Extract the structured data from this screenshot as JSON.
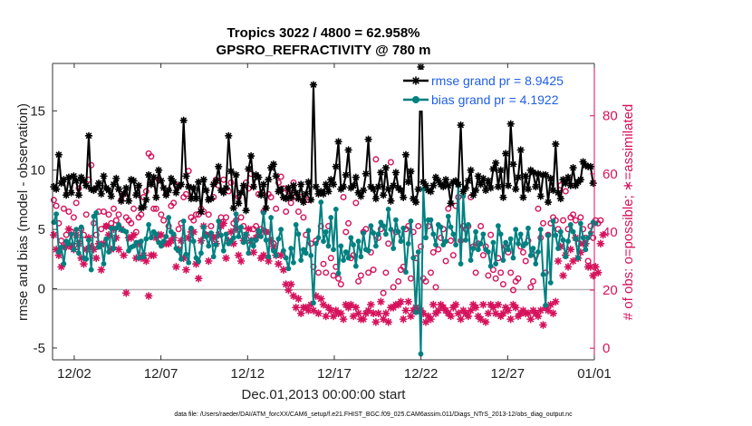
{
  "chart_data": {
    "type": "line",
    "title": "Tropics 3022 / 4800 = 62.958%",
    "subtitle": "GPSRO_REFRACTIVITY @ 780 m",
    "xlabel": "Dec.01,2013 00:00:00 start",
    "ylabel": "rmse and bias (model - observation)",
    "ylabel_right": "# of obs: o=possible; ∗=assimilated",
    "footnote": "data file: /Users/raeder/DAI/ATM_forcXX/CAM6_setup/f.e21.FHIST_BGC.f09_025.CAM6assim.011/Diags_NTrS_2013-12/obs_diag_output.nc",
    "xlim": [
      0.5,
      31.75
    ],
    "ylim": [
      -6,
      19
    ],
    "ylim_right": [
      -4,
      98
    ],
    "x_ticks": [
      1.75,
      6.75,
      11.75,
      16.75,
      21.75,
      26.75,
      31.75
    ],
    "x_tick_labels": [
      "12/02",
      "12/07",
      "12/12",
      "12/17",
      "12/22",
      "12/27",
      "01/01"
    ],
    "y_ticks": [
      -5,
      0,
      5,
      10,
      15
    ],
    "y_tick_labels": [
      "-5",
      "0",
      "5",
      "10",
      "15"
    ],
    "y_right_ticks": [
      0,
      20,
      40,
      60,
      80
    ],
    "y_right_tick_labels": [
      "0",
      "20",
      "40",
      "60",
      "80"
    ],
    "legend_position": "top-right",
    "colors": {
      "rmse": "#000000",
      "bias": "#008080",
      "obs": "#d6125c",
      "zero_line": "#b4b4b4"
    },
    "series": [
      {
        "name": "rmse grand pr = 8.9425",
        "values": [
          8.6,
          8.4,
          11.3,
          8.9,
          9.2,
          7.9,
          9.4,
          8.1,
          9.5,
          9.1,
          7.9,
          9.4,
          9.1,
          8.7,
          12.9,
          8.4,
          8.3,
          8.5,
          8.9,
          8.0,
          9.5,
          8.5,
          8.3,
          7.8,
          8.8,
          9.3,
          8.4,
          7.4,
          8.0,
          8.5,
          7.4,
          9.2,
          9.1,
          7.9,
          8.7,
          6.8,
          6.9,
          7.5,
          9.6,
          8.8,
          9.4,
          7.7,
          10.0,
          9.1,
          8.5,
          7.9,
          8.3,
          9.3,
          9.0,
          8.1,
          8.6,
          8.8,
          14.2,
          9.5,
          8.6,
          7.6,
          8.5,
          7.6,
          9.0,
          6.5,
          9.2,
          8.3,
          7.5,
          7.6,
          8.8,
          9.1,
          10.3,
          8.3,
          8.1,
          8.5,
          12.9,
          9.9,
          6.8,
          9.6,
          7.2,
          8.1,
          8.7,
          6.6,
          10.1,
          11.2,
          8.6,
          9.6,
          9.4,
          7.9,
          8.8,
          6.8,
          9.2,
          10.2,
          10.5,
          9.5,
          8.2,
          8.4,
          7.7,
          7.6,
          8.5,
          7.7,
          8.7,
          8.1,
          7.6,
          8.8,
          7.3,
          8.0,
          9.0,
          7.5,
          17.2,
          8.6,
          8.0,
          8.2,
          8.0,
          8.8,
          8.2,
          9.2,
          8.8,
          10.3,
          12.4,
          8.4,
          8.6,
          9.6,
          11.7,
          8.5,
          8.7,
          9.4,
          8.1,
          7.8,
          8.3,
          9.7,
          12.6,
          8.6,
          8.4,
          7.6,
          8.6,
          9.8,
          7.9,
          10.2,
          8.4,
          7.4,
          8.7,
          9.8,
          8.5,
          8.3,
          7.7,
          11.3,
          9.0,
          9.9,
          7.6,
          7.3,
          8.4,
          18.7,
          9.0,
          8.7,
          8.3,
          8.2,
          8.7,
          9.4,
          9.1,
          8.8,
          8.6,
          9.2,
          8.7,
          7.2,
          9.0,
          9.1,
          8.8,
          13.8,
          8.2,
          8.5,
          9.1,
          10.0,
          7.9,
          8.3,
          9.5,
          8.8,
          9.3,
          8.3,
          9.1,
          8.5,
          10.1,
          10.6,
          8.6,
          10.0,
          7.7,
          11.4,
          8.7,
          13.9,
          10.5,
          8.4,
          9.4,
          11.7,
          7.7,
          9.5,
          8.4,
          10.0,
          9.8,
          8.6,
          9.7,
          7.8,
          9.6,
          9.6,
          7.3,
          9.3,
          8.3,
          12.2,
          8.1,
          7.6,
          9.2,
          8.9,
          9.4,
          8.7,
          10.2,
          8.7,
          9.0,
          9.2,
          10.7,
          10.4,
          10.3,
          10.3,
          8.9
        ]
      },
      {
        "name": "bias grand pr = 4.1922",
        "values": [
          5.6,
          6.3,
          3.1,
          3.5,
          2.1,
          4.0,
          3.8,
          4.6,
          3.3,
          5.0,
          3.0,
          5.2,
          2.6,
          2.5,
          4.1,
          1.6,
          6.1,
          6.4,
          3.5,
          3.7,
          2.1,
          4.2,
          3.1,
          5.1,
          3.4,
          5.1,
          5.4,
          5.0,
          4.9,
          4.8,
          3.2,
          3.5,
          3.6,
          3.9,
          2.6,
          4.0,
          2.7,
          4.2,
          5.4,
          4.3,
          4.8,
          4.6,
          3.9,
          3.6,
          4.0,
          4.4,
          6.0,
          4.8,
          4.6,
          3.4,
          3.2,
          2.5,
          5.7,
          2.9,
          2.2,
          5.1,
          4.0,
          2.6,
          2.3,
          3.0,
          5.2,
          4.4,
          3.6,
          4.7,
          2.7,
          3.7,
          5.7,
          4.5,
          3.2,
          4.6,
          3.8,
          4.0,
          4.3,
          6.3,
          4.4,
          5.2,
          3.9,
          4.6,
          3.0,
          4.1,
          3.6,
          4.1,
          4.9,
          4.4,
          6.4,
          4.1,
          2.7,
          6.0,
          3.2,
          2.8,
          4.2,
          5.0,
          3.2,
          2.6,
          1.7,
          3.4,
          2.2,
          5.4,
          4.6,
          2.4,
          3.3,
          3.0,
          4.9,
          2.8,
          -1.2,
          3.8,
          4.3,
          7.3,
          4.0,
          4.8,
          3.6,
          6.0,
          3.3,
          6.7,
          1.3,
          3.6,
          2.4,
          3.1,
          2.6,
          4.3,
          3.7,
          1.9,
          4.0,
          2.7,
          4.7,
          3.3,
          3.2,
          5.3,
          4.7,
          3.6,
          4.6,
          5.6,
          5.3,
          4.6,
          6.7,
          5.0,
          3.4,
          5.8,
          4.8,
          4.0,
          5.1,
          1.4,
          3.8,
          5.7,
          2.6,
          -2.0,
          3.1,
          -5.5,
          8.4,
          4.3,
          5.8,
          5.8,
          4.6,
          3.7,
          5.4,
          5.2,
          3.7,
          4.0,
          6.1,
          5.2,
          4.6,
          3.7,
          8.7,
          2.1,
          7.8,
          4.1,
          5.4,
          2.4,
          3.4,
          4.8,
          3.3,
          3.8,
          4.6,
          3.3,
          3.1,
          1.9,
          3.9,
          2.1,
          5.3,
          4.6,
          2.4,
          3.9,
          3.3,
          4.2,
          2.6,
          5.0,
          3.8,
          4.6,
          3.6,
          3.8,
          5.1,
          2.8,
          3.4,
          2.1,
          3.1,
          5.0,
          1.2,
          -1.4,
          4.5,
          0.5,
          5.7,
          4.5,
          3.4,
          4.8,
          4.1,
          2.7,
          4.0,
          5.4,
          4.8,
          4.2,
          2.6,
          5.5,
          4.3,
          3.3,
          4.3,
          4.7,
          5.6,
          5.5
        ]
      }
    ],
    "obs_possible": [
      51,
      49,
      43,
      37,
      48,
      39,
      47,
      40,
      45,
      50,
      55,
      41,
      39,
      46,
      58,
      63,
      43,
      39,
      47,
      41,
      47,
      42,
      46,
      43,
      48,
      44,
      46,
      51,
      53,
      45,
      44,
      43,
      48,
      40,
      45,
      46,
      52,
      54,
      67,
      66,
      48,
      48,
      58,
      46,
      44,
      53,
      42,
      49,
      50,
      56,
      41,
      43,
      52,
      53,
      61,
      45,
      44,
      46,
      46,
      48,
      47,
      39,
      46,
      42,
      52,
      58,
      56,
      45,
      58,
      45,
      54,
      57,
      43,
      44,
      52,
      45,
      42,
      57,
      55,
      60,
      41,
      42,
      53,
      41,
      47,
      40,
      53,
      52,
      36,
      48,
      57,
      59,
      55,
      47,
      54,
      50,
      57,
      52,
      47,
      52,
      45,
      39,
      51,
      36,
      28,
      37,
      26,
      42,
      29,
      26,
      42,
      31,
      25,
      28,
      24,
      22,
      52,
      40,
      43,
      31,
      32,
      50,
      23,
      25,
      40,
      41,
      26,
      33,
      27,
      65,
      38,
      41,
      19,
      26,
      36,
      64,
      21,
      40,
      23,
      27,
      28,
      41,
      42,
      24,
      40,
      31,
      42,
      35,
      24,
      23,
      42,
      26,
      33,
      21,
      34,
      38,
      41,
      30,
      48,
      37,
      32,
      49,
      52,
      37,
      42,
      41,
      42,
      52,
      35,
      26,
      36,
      42,
      32,
      35,
      25,
      39,
      27,
      24,
      31,
      26,
      22,
      35,
      33,
      26,
      20,
      23,
      24,
      35,
      33,
      30,
      37,
      21,
      23,
      32,
      48,
      38,
      43,
      26,
      39,
      43,
      45,
      44,
      41,
      56,
      44,
      54,
      41,
      45,
      46,
      44,
      36,
      45,
      41,
      38,
      30,
      42,
      38,
      44,
      43,
      44
    ],
    "obs_assimilated": [
      39,
      34,
      32,
      28,
      35,
      35,
      41,
      35,
      34,
      39,
      36,
      31,
      29,
      34,
      38,
      35,
      34,
      31,
      36,
      27,
      36,
      42,
      39,
      34,
      41,
      38,
      34,
      41,
      32,
      19,
      38,
      38,
      39,
      31,
      36,
      31,
      32,
      30,
      18,
      32,
      32,
      38,
      39,
      39,
      36,
      36,
      36,
      37,
      38,
      28,
      34,
      37,
      31,
      27,
      38,
      40,
      40,
      29,
      24,
      37,
      42,
      39,
      30,
      39,
      38,
      36,
      39,
      42,
      43,
      31,
      37,
      40,
      36,
      41,
      32,
      30,
      37,
      39,
      41,
      37,
      33,
      38,
      39,
      31,
      32,
      40,
      30,
      37,
      35,
      32,
      29,
      32,
      27,
      22,
      20,
      22,
      18,
      14,
      17,
      12,
      14,
      14,
      13,
      15,
      13,
      18,
      12,
      17,
      15,
      11,
      14,
      13,
      11,
      13,
      12,
      12,
      10,
      15,
      14,
      15,
      11,
      14,
      12,
      10,
      10,
      12,
      13,
      15,
      12,
      9,
      12,
      16,
      10,
      12,
      9,
      14,
      14,
      15,
      15,
      16,
      10,
      13,
      16,
      11,
      13,
      14,
      13,
      13,
      12,
      9,
      11,
      10,
      15,
      12,
      13,
      15,
      14,
      13,
      12,
      11,
      14,
      15,
      12,
      10,
      13,
      12,
      11,
      13,
      15,
      14,
      11,
      10,
      15,
      9,
      12,
      15,
      14,
      12,
      15,
      11,
      12,
      14,
      13,
      10,
      15,
      14,
      11,
      12,
      13,
      12,
      12,
      10,
      13,
      12,
      11,
      13,
      8,
      14,
      13,
      15,
      12,
      16,
      30,
      35,
      25,
      32,
      28,
      34,
      30,
      38,
      31,
      33,
      36,
      36,
      28,
      28,
      25,
      28,
      26,
      36,
      39
    ]
  }
}
